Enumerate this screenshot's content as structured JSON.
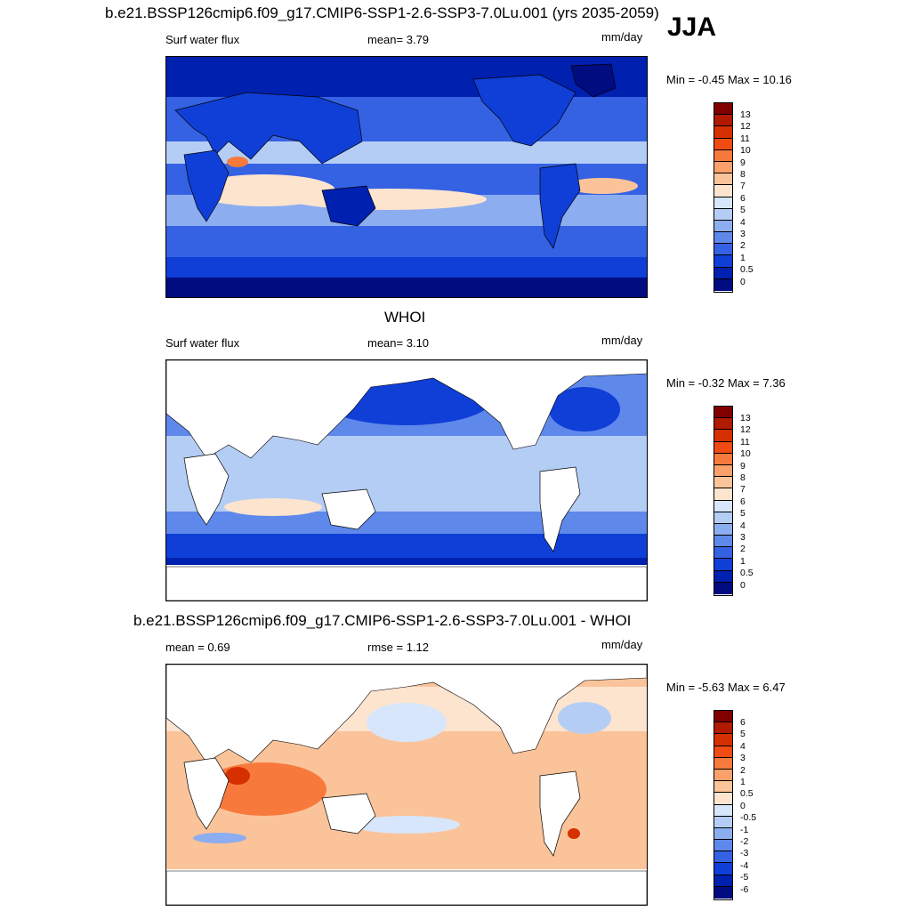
{
  "season": "JJA",
  "panels": [
    {
      "title": "b.e21.BSSP126cmip6.f09_g17.CMIP6-SSP1-2.6-SSP3-7.0Lu.001 (yrs 2035-2059)",
      "left_label": "Surf water flux",
      "center_label": "mean=   3.79",
      "units": "mm/day",
      "minmax": "Min =  -0.45 Max =  10.16",
      "colorbar_labels": [
        "13",
        "12",
        "11",
        "10",
        "9",
        "8",
        "7",
        "6",
        "5",
        "4",
        "3",
        "2",
        "1",
        "0.5",
        "0"
      ]
    },
    {
      "title": "WHOI",
      "left_label": "Surf water flux",
      "center_label": "mean=   3.10",
      "units": "mm/day",
      "minmax": "Min =  -0.32 Max =   7.36",
      "colorbar_labels": [
        "13",
        "12",
        "11",
        "10",
        "9",
        "8",
        "7",
        "6",
        "5",
        "4",
        "3",
        "2",
        "1",
        "0.5",
        "0"
      ]
    },
    {
      "title": "b.e21.BSSP126cmip6.f09_g17.CMIP6-SSP1-2.6-SSP3-7.0Lu.001 - WHOI",
      "left_label": "mean =   0.69",
      "center_label": "rmse =   1.12",
      "units": "mm/day",
      "minmax": "Min =  -5.63 Max =   6.47",
      "colorbar_labels": [
        "6",
        "5",
        "4",
        "3",
        "2",
        "1",
        "0.5",
        "0",
        "-0.5",
        "-1",
        "-2",
        "-3",
        "-4",
        "-5",
        "-6"
      ]
    }
  ],
  "colors": {
    "abs_scale": [
      "#800000",
      "#b01a00",
      "#d63000",
      "#f04b13",
      "#f77a3c",
      "#faa06a",
      "#fbc39a",
      "#fde4cf",
      "#d7e6fa",
      "#b4cdf5",
      "#8cadf0",
      "#5f88eb",
      "#3562e3",
      "#0f3fd6",
      "#0020b0",
      "#000c80"
    ],
    "diff_scale": [
      "#800000",
      "#b01a00",
      "#d63000",
      "#f04b13",
      "#f77a3c",
      "#faa06a",
      "#fbc39a",
      "#fde4cf",
      "#d7e6fa",
      "#b4cdf5",
      "#8cadf0",
      "#5f88eb",
      "#3562e3",
      "#0f3fd6",
      "#0020b0",
      "#000c80"
    ],
    "land": "#ffffff",
    "coast": "#000000"
  }
}
